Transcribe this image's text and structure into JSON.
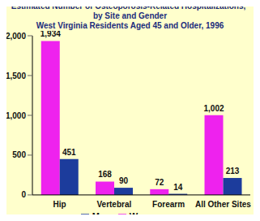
{
  "chart_data": {
    "type": "bar",
    "title": "Estimated Number of Osteoporosis-Related Hospitalizations,* by Site and Gender",
    "subtitle": "West Virginia Residents Aged 45 and Older, 1996",
    "categories": [
      "Hip",
      "Vertebral",
      "Forearm",
      "All Other Sites"
    ],
    "series": [
      {
        "name": "Women",
        "color": "#ee22ee",
        "values": [
          1934,
          168,
          72,
          1002
        ],
        "value_labels": [
          "1,934",
          "168",
          "72",
          "1,002"
        ]
      },
      {
        "name": "Men",
        "color": "#1c3c9c",
        "values": [
          451,
          90,
          14,
          213
        ],
        "value_labels": [
          "451",
          "90",
          "14",
          "213"
        ]
      }
    ],
    "ylim": [
      0,
      2000
    ],
    "yticks": [
      0,
      500,
      {
        "value": 1000,
        "label": "1,000"
      },
      {
        "value": 1500,
        "label": "1,500"
      },
      {
        "value": 2000,
        "label": "2,000"
      }
    ],
    "grid": false,
    "legend": "bottom",
    "data_labels": true
  }
}
